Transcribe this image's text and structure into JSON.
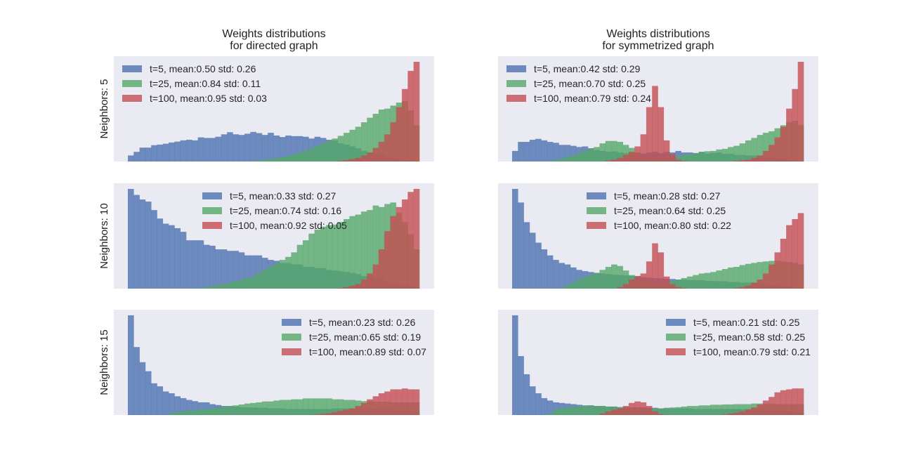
{
  "figure": {
    "column_titles": [
      [
        "Weights distributions",
        "for directed graph"
      ],
      [
        "Weights distributions",
        "for symmetrized graph"
      ]
    ],
    "row_labels": [
      "Neighbors: 5",
      "Neighbors: 10",
      "Neighbors: 15"
    ]
  },
  "colors": {
    "t5": "#4c72b0",
    "t25": "#55a868",
    "t100": "#c44e52",
    "panel_bg": "#eaeaf2"
  },
  "chart_data": [
    {
      "type": "bar",
      "subtype": "histogram",
      "panel": "directed, neighbors 5",
      "x_range": [
        0,
        1
      ],
      "ylim": [
        0,
        3.3
      ],
      "grid": false,
      "legend_position": "upper-left",
      "bins": 50,
      "series": [
        {
          "name": "t=5, mean:0.50 std: 0.26",
          "values": [
            0.2,
            0.32,
            0.46,
            0.46,
            0.54,
            0.56,
            0.59,
            0.63,
            0.66,
            0.7,
            0.72,
            0.7,
            0.8,
            0.78,
            0.78,
            0.82,
            0.9,
            0.97,
            0.9,
            0.88,
            0.92,
            0.98,
            0.94,
            0.88,
            0.95,
            0.86,
            0.81,
            0.86,
            0.84,
            0.84,
            0.82,
            0.76,
            0.82,
            0.78,
            0.72,
            0.7,
            0.6,
            0.56,
            0.5,
            0.44,
            0.35,
            0.3,
            0.26,
            0.22,
            0.16,
            0.12,
            0.08,
            0.05,
            0.02,
            0.0
          ]
        },
        {
          "name": "t=25, mean:0.84 std: 0.11",
          "values": [
            0,
            0,
            0,
            0,
            0,
            0,
            0,
            0,
            0,
            0,
            0,
            0,
            0,
            0,
            0,
            0,
            0,
            0,
            0,
            0,
            0,
            0.02,
            0.04,
            0.06,
            0.08,
            0.11,
            0.14,
            0.18,
            0.24,
            0.3,
            0.36,
            0.44,
            0.52,
            0.6,
            0.68,
            0.76,
            0.85,
            0.95,
            1.05,
            1.15,
            1.3,
            1.45,
            1.58,
            1.72,
            1.75,
            1.85,
            1.95,
            2.0,
            1.7,
            1.2
          ]
        },
        {
          "name": "t=100, mean:0.95 std: 0.03",
          "values": [
            0,
            0,
            0,
            0,
            0,
            0,
            0,
            0,
            0,
            0,
            0,
            0,
            0,
            0,
            0,
            0,
            0,
            0,
            0,
            0,
            0,
            0,
            0,
            0,
            0,
            0,
            0,
            0,
            0,
            0,
            0,
            0,
            0,
            0,
            0,
            0,
            0.02,
            0.05,
            0.08,
            0.12,
            0.2,
            0.3,
            0.45,
            0.65,
            0.9,
            1.3,
            1.8,
            2.4,
            3.0,
            3.3
          ]
        }
      ]
    },
    {
      "type": "bar",
      "subtype": "histogram",
      "panel": "symmetrized, neighbors 5",
      "x_range": [
        0,
        1
      ],
      "ylim": [
        0,
        3.3
      ],
      "grid": false,
      "legend_position": "upper-left",
      "bins": 50,
      "series": [
        {
          "name": "t=5, mean:0.42 std: 0.29",
          "values": [
            0.35,
            0.65,
            0.65,
            0.72,
            0.75,
            0.7,
            0.65,
            0.62,
            0.55,
            0.55,
            0.52,
            0.48,
            0.5,
            0.44,
            0.38,
            0.35,
            0.32,
            0.34,
            0.3,
            0.28,
            0.3,
            0.28,
            0.26,
            0.3,
            0.32,
            0.28,
            0.32,
            0.3,
            0.35,
            0.3,
            0.3,
            0.28,
            0.32,
            0.26,
            0.28,
            0.3,
            0.25,
            0.26,
            0.22,
            0.22,
            0.2,
            0.2,
            0.18,
            0.16,
            0.14,
            0.12,
            0.1,
            0.06,
            0.03,
            0.0
          ]
        },
        {
          "name": "t=25, mean:0.70 std: 0.25",
          "values": [
            0,
            0,
            0,
            0,
            0,
            0,
            0.02,
            0.05,
            0.1,
            0.15,
            0.2,
            0.28,
            0.35,
            0.42,
            0.48,
            0.6,
            0.68,
            0.68,
            0.65,
            0.55,
            0.45,
            0.3,
            0.2,
            0.12,
            0.08,
            0.08,
            0.1,
            0.14,
            0.18,
            0.22,
            0.25,
            0.28,
            0.32,
            0.34,
            0.35,
            0.4,
            0.42,
            0.48,
            0.52,
            0.6,
            0.7,
            0.78,
            0.88,
            0.95,
            1.0,
            1.1,
            1.2,
            1.3,
            1.35,
            1.2
          ]
        },
        {
          "name": "t=100, mean:0.79 std: 0.24",
          "values": [
            0,
            0,
            0,
            0,
            0,
            0,
            0,
            0,
            0,
            0,
            0,
            0,
            0,
            0,
            0,
            0,
            0.03,
            0.06,
            0.12,
            0.22,
            0.32,
            0.5,
            0.9,
            1.8,
            2.5,
            1.8,
            0.7,
            0.25,
            0.06,
            0.02,
            0,
            0,
            0,
            0,
            0,
            0,
            0,
            0,
            0.02,
            0.04,
            0.06,
            0.12,
            0.2,
            0.35,
            0.55,
            0.8,
            1.15,
            1.75,
            2.4,
            3.3
          ]
        }
      ]
    },
    {
      "type": "bar",
      "subtype": "histogram",
      "panel": "directed, neighbors 10",
      "x_range": [
        0,
        1
      ],
      "ylim": [
        0,
        3.3
      ],
      "grid": false,
      "legend_position": "upper-center",
      "bins": 50,
      "series": [
        {
          "name": "t=5, mean:0.33 std: 0.27",
          "values": [
            3.3,
            3.1,
            2.95,
            2.88,
            2.6,
            2.32,
            2.15,
            2.1,
            2.0,
            1.88,
            1.6,
            1.6,
            1.6,
            1.45,
            1.42,
            1.3,
            1.3,
            1.25,
            1.25,
            1.2,
            1.1,
            1.1,
            1.1,
            1.02,
            0.95,
            0.92,
            0.85,
            0.85,
            0.8,
            0.8,
            0.72,
            0.72,
            0.68,
            0.68,
            0.62,
            0.6,
            0.58,
            0.55,
            0.52,
            0.48,
            0.42,
            0.4,
            0.35,
            0.32,
            0.25,
            0.2,
            0.15,
            0.12,
            0.08,
            0.05
          ]
        },
        {
          "name": "t=25, mean:0.74 std: 0.16",
          "values": [
            0,
            0,
            0,
            0,
            0,
            0,
            0,
            0,
            0,
            0,
            0,
            0,
            0.02,
            0.05,
            0.08,
            0.12,
            0.15,
            0.2,
            0.25,
            0.3,
            0.35,
            0.4,
            0.52,
            0.62,
            0.72,
            0.85,
            0.95,
            1.05,
            1.2,
            1.45,
            1.6,
            1.82,
            1.95,
            2.05,
            2.1,
            2.12,
            2.2,
            2.3,
            2.4,
            2.45,
            2.55,
            2.6,
            2.75,
            2.7,
            2.8,
            2.85,
            2.5,
            2.2,
            1.8,
            1.3
          ]
        },
        {
          "name": "t=100, mean:0.92 std: 0.05",
          "values": [
            0,
            0,
            0,
            0,
            0,
            0,
            0,
            0,
            0,
            0,
            0,
            0,
            0,
            0,
            0,
            0,
            0,
            0,
            0,
            0,
            0,
            0,
            0,
            0,
            0,
            0,
            0,
            0,
            0,
            0,
            0,
            0,
            0,
            0,
            0,
            0,
            0.02,
            0.05,
            0.1,
            0.15,
            0.3,
            0.5,
            0.8,
            1.3,
            1.9,
            2.4,
            2.7,
            2.95,
            3.2,
            3.3
          ]
        }
      ]
    },
    {
      "type": "bar",
      "subtype": "histogram",
      "panel": "symmetrized, neighbors 10",
      "x_range": [
        0,
        1
      ],
      "ylim": [
        0,
        3.3
      ],
      "grid": false,
      "legend_position": "upper-center",
      "bins": 50,
      "series": [
        {
          "name": "t=5, mean:0.28 std: 0.27",
          "values": [
            3.3,
            2.85,
            2.2,
            1.85,
            1.52,
            1.3,
            1.1,
            0.95,
            0.85,
            0.8,
            0.7,
            0.62,
            0.58,
            0.55,
            0.52,
            0.5,
            0.48,
            0.46,
            0.45,
            0.44,
            0.42,
            0.4,
            0.38,
            0.36,
            0.35,
            0.34,
            0.32,
            0.32,
            0.3,
            0.3,
            0.28,
            0.28,
            0.28,
            0.26,
            0.25,
            0.25,
            0.24,
            0.22,
            0.22,
            0.2,
            0.2,
            0.18,
            0.16,
            0.14,
            0.12,
            0.1,
            0.08,
            0.06,
            0.04,
            0.02
          ]
        },
        {
          "name": "t=25, mean:0.64 std: 0.25",
          "values": [
            0,
            0,
            0,
            0,
            0,
            0,
            0,
            0,
            0.02,
            0.1,
            0.2,
            0.3,
            0.38,
            0.45,
            0.52,
            0.62,
            0.72,
            0.8,
            0.75,
            0.6,
            0.45,
            0.3,
            0.25,
            0.22,
            0.2,
            0.2,
            0.22,
            0.25,
            0.3,
            0.35,
            0.4,
            0.45,
            0.5,
            0.52,
            0.55,
            0.6,
            0.65,
            0.7,
            0.72,
            0.78,
            0.82,
            0.85,
            0.88,
            0.9,
            0.92,
            0.92,
            0.9,
            0.88,
            0.85,
            0.8
          ]
        },
        {
          "name": "t=100, mean:0.80 std: 0.22",
          "values": [
            0,
            0,
            0,
            0,
            0,
            0,
            0,
            0,
            0,
            0,
            0,
            0,
            0,
            0,
            0,
            0,
            0,
            0,
            0.05,
            0.15,
            0.3,
            0.42,
            0.5,
            0.9,
            1.5,
            1.2,
            0.4,
            0.15,
            0.05,
            0.02,
            0,
            0,
            0,
            0,
            0,
            0,
            0,
            0,
            0.02,
            0.05,
            0.1,
            0.2,
            0.3,
            0.5,
            0.8,
            1.2,
            1.65,
            2.1,
            2.3,
            2.5
          ]
        }
      ]
    },
    {
      "type": "bar",
      "subtype": "histogram",
      "panel": "directed, neighbors 15",
      "x_range": [
        0,
        1
      ],
      "ylim": [
        0,
        3.3
      ],
      "grid": false,
      "legend_position": "upper-right",
      "bins": 50,
      "series": [
        {
          "name": "t=5, mean:0.23 std: 0.26",
          "values": [
            3.3,
            2.25,
            1.75,
            1.45,
            1.05,
            0.95,
            0.78,
            0.72,
            0.62,
            0.56,
            0.5,
            0.46,
            0.42,
            0.42,
            0.36,
            0.33,
            0.3,
            0.3,
            0.28,
            0.26,
            0.25,
            0.25,
            0.24,
            0.24,
            0.22,
            0.22,
            0.22,
            0.2,
            0.2,
            0.2,
            0.2,
            0.2,
            0.2,
            0.2,
            0.2,
            0.22,
            0.22,
            0.22,
            0.22,
            0.22,
            0.22,
            0.22,
            0.2,
            0.2,
            0.2,
            0.18,
            0.16,
            0.14,
            0.12,
            0.1
          ]
        },
        {
          "name": "t=25, mean:0.65 std: 0.19",
          "values": [
            0,
            0,
            0,
            0,
            0,
            0,
            0,
            0.05,
            0.1,
            0.12,
            0.15,
            0.15,
            0.18,
            0.2,
            0.22,
            0.25,
            0.28,
            0.3,
            0.32,
            0.35,
            0.38,
            0.4,
            0.42,
            0.45,
            0.45,
            0.48,
            0.5,
            0.5,
            0.52,
            0.52,
            0.55,
            0.55,
            0.55,
            0.55,
            0.55,
            0.52,
            0.52,
            0.5,
            0.5,
            0.48,
            0.46,
            0.46,
            0.44,
            0.44,
            0.44,
            0.42,
            0.42,
            0.42,
            0.42,
            0.42
          ]
        },
        {
          "name": "t=100, mean:0.89 std: 0.07",
          "values": [
            0,
            0,
            0,
            0,
            0,
            0,
            0,
            0,
            0,
            0,
            0,
            0,
            0,
            0,
            0,
            0,
            0,
            0,
            0,
            0,
            0,
            0,
            0,
            0,
            0,
            0,
            0,
            0,
            0,
            0,
            0,
            0,
            0.02,
            0.04,
            0.06,
            0.1,
            0.14,
            0.18,
            0.22,
            0.3,
            0.4,
            0.52,
            0.62,
            0.72,
            0.78,
            0.85,
            0.85,
            0.88,
            0.85,
            0.85
          ]
        }
      ]
    },
    {
      "type": "bar",
      "subtype": "histogram",
      "panel": "symmetrized, neighbors 15",
      "x_range": [
        0,
        1
      ],
      "ylim": [
        0,
        3.3
      ],
      "grid": false,
      "legend_position": "upper-right",
      "bins": 50,
      "series": [
        {
          "name": "t=5, mean:0.21 std: 0.25",
          "values": [
            3.3,
            1.95,
            1.35,
            0.95,
            0.72,
            0.56,
            0.48,
            0.42,
            0.4,
            0.38,
            0.36,
            0.34,
            0.32,
            0.32,
            0.3,
            0.3,
            0.28,
            0.28,
            0.26,
            0.26,
            0.25,
            0.25,
            0.25,
            0.24,
            0.24,
            0.22,
            0.22,
            0.22,
            0.22,
            0.22,
            0.22,
            0.2,
            0.2,
            0.2,
            0.2,
            0.2,
            0.2,
            0.2,
            0.2,
            0.2,
            0.2,
            0.2,
            0.2,
            0.18,
            0.16,
            0.15,
            0.14,
            0.12,
            0.1,
            0.08
          ]
        },
        {
          "name": "t=25, mean:0.58 std: 0.25",
          "values": [
            0,
            0,
            0,
            0,
            0,
            0,
            0.05,
            0.18,
            0.22,
            0.25,
            0.28,
            0.3,
            0.3,
            0.32,
            0.3,
            0.3,
            0.28,
            0.28,
            0.26,
            0.25,
            0.22,
            0.2,
            0.2,
            0.2,
            0.22,
            0.22,
            0.24,
            0.25,
            0.26,
            0.28,
            0.3,
            0.3,
            0.32,
            0.32,
            0.34,
            0.34,
            0.35,
            0.35,
            0.36,
            0.36,
            0.36,
            0.38,
            0.38,
            0.38,
            0.38,
            0.36,
            0.36,
            0.36,
            0.36,
            0.36
          ]
        },
        {
          "name": "t=100, mean:0.79 std: 0.21",
          "values": [
            0,
            0,
            0,
            0,
            0,
            0,
            0,
            0,
            0,
            0,
            0,
            0,
            0,
            0,
            0,
            0.05,
            0.12,
            0.18,
            0.22,
            0.3,
            0.4,
            0.45,
            0.42,
            0.3,
            0.12,
            0.03,
            0,
            0,
            0,
            0,
            0,
            0,
            0,
            0,
            0,
            0,
            0.02,
            0.05,
            0.08,
            0.12,
            0.18,
            0.25,
            0.35,
            0.48,
            0.6,
            0.75,
            0.82,
            0.85,
            0.88,
            0.88
          ]
        }
      ]
    }
  ]
}
